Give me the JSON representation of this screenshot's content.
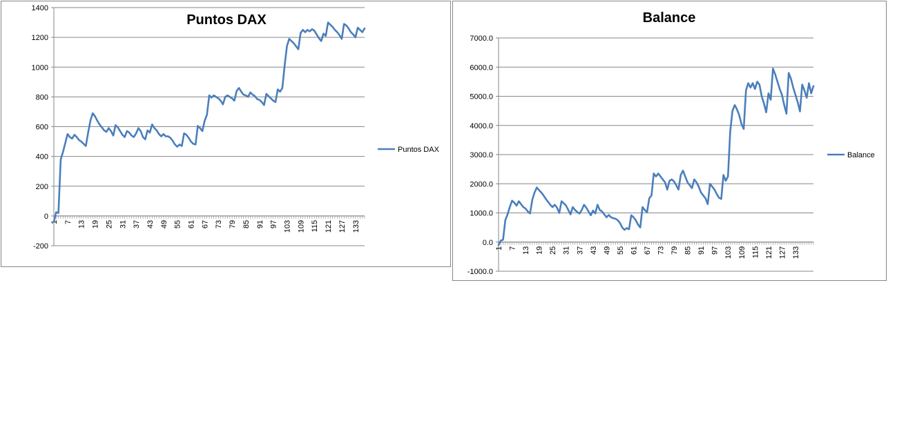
{
  "chart_data": [
    {
      "type": "line",
      "title": "Puntos DAX",
      "ylim": [
        -200,
        1400
      ],
      "yticks": [
        -200,
        0,
        200,
        400,
        600,
        800,
        1000,
        1200,
        1400
      ],
      "ytick_labels": [
        "-200",
        "0",
        "200",
        "400",
        "600",
        "800",
        "1000",
        "1200",
        "1400"
      ],
      "x_range": [
        1,
        138
      ],
      "xticks": [
        1,
        7,
        13,
        19,
        25,
        31,
        37,
        43,
        49,
        55,
        61,
        67,
        73,
        79,
        85,
        91,
        97,
        103,
        109,
        115,
        121,
        127,
        133
      ],
      "xtick_labels": [
        "1",
        "7",
        "13",
        "19",
        "25",
        "31",
        "37",
        "43",
        "49",
        "55",
        "61",
        "67",
        "73",
        "79",
        "85",
        "91",
        "97",
        "103",
        "109",
        "115",
        "121",
        "127",
        "133"
      ],
      "grid": "horizontal",
      "legend_position": "right",
      "series": [
        {
          "name": "Puntos DAX",
          "color": "#4a7ebb",
          "values": [
            -40,
            25,
            20,
            380,
            430,
            490,
            550,
            530,
            520,
            545,
            530,
            510,
            500,
            485,
            470,
            560,
            640,
            690,
            670,
            640,
            615,
            595,
            575,
            565,
            590,
            570,
            540,
            610,
            595,
            570,
            545,
            530,
            570,
            560,
            540,
            530,
            555,
            590,
            570,
            530,
            515,
            575,
            560,
            615,
            590,
            575,
            550,
            535,
            550,
            535,
            535,
            525,
            505,
            480,
            465,
            480,
            470,
            555,
            545,
            525,
            500,
            485,
            480,
            605,
            590,
            570,
            640,
            680,
            810,
            795,
            810,
            800,
            790,
            775,
            750,
            800,
            810,
            800,
            790,
            775,
            840,
            860,
            835,
            815,
            810,
            800,
            830,
            815,
            805,
            785,
            780,
            765,
            745,
            820,
            805,
            790,
            775,
            765,
            850,
            835,
            860,
            1010,
            1140,
            1190,
            1175,
            1160,
            1140,
            1120,
            1230,
            1250,
            1235,
            1250,
            1240,
            1255,
            1245,
            1220,
            1195,
            1175,
            1225,
            1210,
            1300,
            1285,
            1270,
            1250,
            1235,
            1215,
            1190,
            1290,
            1280,
            1260,
            1235,
            1220,
            1200,
            1265,
            1250,
            1235,
            1260
          ]
        }
      ]
    },
    {
      "type": "line",
      "title": "Balance",
      "ylim": [
        -1000,
        7000
      ],
      "yticks": [
        -1000,
        0,
        1000,
        2000,
        3000,
        4000,
        5000,
        6000,
        7000
      ],
      "ytick_labels": [
        "-1000.0",
        "0.0",
        "1000.0",
        "2000.0",
        "3000.0",
        "4000.0",
        "5000.0",
        "6000.0",
        "7000.0"
      ],
      "x_range": [
        1,
        138
      ],
      "xticks": [
        1,
        7,
        13,
        19,
        25,
        31,
        37,
        43,
        49,
        55,
        61,
        67,
        73,
        79,
        85,
        91,
        97,
        103,
        109,
        115,
        121,
        127,
        133
      ],
      "xtick_labels": [
        "1",
        "7",
        "13",
        "19",
        "25",
        "31",
        "37",
        "43",
        "49",
        "55",
        "61",
        "67",
        "73",
        "79",
        "85",
        "91",
        "97",
        "103",
        "109",
        "115",
        "121",
        "127",
        "133"
      ],
      "grid": "horizontal",
      "legend_position": "right",
      "series": [
        {
          "name": "Balance",
          "color": "#4a7ebb",
          "values": [
            -100,
            50,
            80,
            750,
            950,
            1200,
            1420,
            1350,
            1250,
            1400,
            1300,
            1200,
            1150,
            1050,
            980,
            1450,
            1700,
            1870,
            1780,
            1700,
            1600,
            1480,
            1380,
            1280,
            1200,
            1280,
            1180,
            1000,
            1400,
            1330,
            1250,
            1100,
            950,
            1200,
            1100,
            1030,
            980,
            1100,
            1280,
            1180,
            1050,
            920,
            1080,
            980,
            1280,
            1100,
            1050,
            950,
            850,
            930,
            850,
            820,
            800,
            750,
            650,
            500,
            420,
            480,
            440,
            920,
            850,
            750,
            600,
            500,
            1200,
            1100,
            1020,
            1500,
            1600,
            2350,
            2250,
            2350,
            2250,
            2150,
            2050,
            1800,
            2100,
            2150,
            2080,
            1950,
            1800,
            2300,
            2450,
            2250,
            2050,
            1950,
            1850,
            2150,
            2050,
            1900,
            1700,
            1600,
            1500,
            1300,
            2000,
            1900,
            1800,
            1650,
            1520,
            1480,
            2300,
            2100,
            2250,
            3800,
            4500,
            4700,
            4550,
            4350,
            4050,
            3880,
            5200,
            5450,
            5300,
            5450,
            5250,
            5500,
            5400,
            5000,
            4750,
            4450,
            5100,
            4880,
            5950,
            5750,
            5500,
            5250,
            5050,
            4700,
            4400,
            5800,
            5600,
            5300,
            5050,
            4800,
            4480,
            5400,
            5200,
            4950,
            5450,
            5100,
            5350
          ]
        }
      ]
    }
  ]
}
